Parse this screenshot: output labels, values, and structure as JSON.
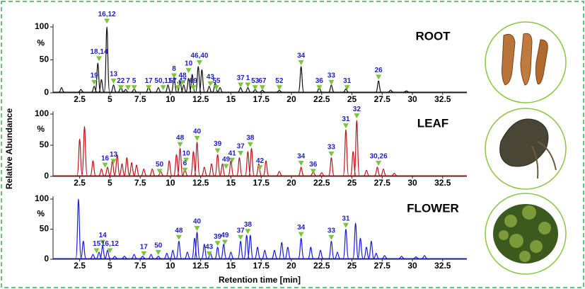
{
  "y_label": "Relative Abundance",
  "x_label": "Retention time [min]",
  "chart_data": [
    {
      "type": "chromatogram",
      "title": "ROOT",
      "color": "#111111",
      "y_unit": "%",
      "xlim": [
        0.3,
        34.5
      ],
      "ylim": [
        0,
        100
      ],
      "xticks": [
        2.5,
        5,
        7.5,
        10,
        12.5,
        15,
        17.5,
        20,
        22.5,
        25,
        27.5,
        30,
        32.5
      ],
      "yticks": [
        0,
        50,
        100
      ],
      "peaks": {
        "x": [
          1.0,
          2.6,
          3.7,
          4.0,
          4.3,
          4.75,
          5.3,
          5.9,
          6.3,
          7.0,
          8.2,
          9.0,
          9.8,
          10.3,
          10.8,
          11.1,
          11.5,
          11.8,
          12.3,
          12.6,
          13.2,
          13.7,
          14.1,
          15.8,
          16.4,
          17.0,
          17.6,
          19.0,
          20.8,
          22.3,
          23.3,
          24.5,
          27.2,
          28.2,
          29.5
        ],
        "values": [
          8,
          5,
          10,
          45,
          20,
          100,
          12,
          10,
          5,
          6,
          10,
          8,
          12,
          25,
          18,
          12,
          22,
          28,
          40,
          35,
          10,
          15,
          8,
          8,
          8,
          5,
          4,
          4,
          40,
          8,
          12,
          6,
          18,
          4,
          3
        ]
      },
      "annotations": [
        {
          "text": "19",
          "x": 3.7,
          "y": 12
        },
        {
          "text": "18,14",
          "x": 4.1,
          "y": 48
        },
        {
          "text": "16,12",
          "x": 4.75,
          "y": 105
        },
        {
          "text": "13",
          "x": 5.3,
          "y": 14
        },
        {
          "text": "22",
          "x": 5.9,
          "y": 4
        },
        {
          "text": "7",
          "x": 6.5,
          "y": 4
        },
        {
          "text": "5",
          "x": 7.0,
          "y": 4
        },
        {
          "text": "17",
          "x": 8.2,
          "y": 4
        },
        {
          "text": "50,11",
          "x": 9.4,
          "y": 4
        },
        {
          "text": "8",
          "x": 10.3,
          "y": 22
        },
        {
          "text": "57,47",
          "x": 10.6,
          "y": 4
        },
        {
          "text": "48",
          "x": 11.0,
          "y": 12
        },
        {
          "text": "10",
          "x": 11.5,
          "y": 30
        },
        {
          "text": "69",
          "x": 11.9,
          "y": 4
        },
        {
          "text": "46,40",
          "x": 12.4,
          "y": 42
        },
        {
          "text": "43",
          "x": 13.3,
          "y": 10
        },
        {
          "text": "55",
          "x": 13.8,
          "y": 4
        },
        {
          "text": "37",
          "x": 15.8,
          "y": 8
        },
        {
          "text": "1",
          "x": 16.4,
          "y": 8
        },
        {
          "text": "53",
          "x": 17.0,
          "y": 4
        },
        {
          "text": "67",
          "x": 17.6,
          "y": 4
        },
        {
          "text": "52",
          "x": 19.0,
          "y": 4
        },
        {
          "text": "34",
          "x": 20.8,
          "y": 42
        },
        {
          "text": "36",
          "x": 22.3,
          "y": 4
        },
        {
          "text": "33",
          "x": 23.3,
          "y": 12
        },
        {
          "text": "31",
          "x": 24.6,
          "y": 4
        },
        {
          "text": "26",
          "x": 27.2,
          "y": 20
        }
      ]
    },
    {
      "type": "chromatogram",
      "title": "LEAF",
      "color": "#c0141c",
      "y_unit": "%",
      "xlim": [
        0.3,
        34.5
      ],
      "ylim": [
        0,
        100
      ],
      "xticks": [
        2.5,
        5,
        7.5,
        10,
        12.5,
        15,
        17.5,
        20,
        22.5,
        25,
        27.5,
        30,
        32.5
      ],
      "yticks": [
        0,
        50,
        100
      ],
      "peaks": {
        "x": [
          2.5,
          2.9,
          3.6,
          4.3,
          4.8,
          5.2,
          5.6,
          6.0,
          6.4,
          6.8,
          7.2,
          7.8,
          8.5,
          9.2,
          9.9,
          10.5,
          10.8,
          11.2,
          11.9,
          12.2,
          12.8,
          13.4,
          13.9,
          14.3,
          15.0,
          15.7,
          16.4,
          16.7,
          17.3,
          17.9,
          19.0,
          20.8,
          21.8,
          22.5,
          23.3,
          24.5,
          25.1,
          25.4,
          26.2,
          27.1,
          27.6,
          28.5
        ],
        "values": [
          60,
          80,
          25,
          12,
          15,
          25,
          35,
          20,
          30,
          22,
          18,
          12,
          12,
          8,
          25,
          35,
          45,
          12,
          40,
          55,
          15,
          20,
          35,
          20,
          25,
          30,
          40,
          45,
          20,
          25,
          8,
          15,
          8,
          6,
          30,
          75,
          40,
          90,
          10,
          15,
          12,
          5
        ]
      },
      "annotations": [
        {
          "text": "16",
          "x": 4.6,
          "y": 14
        },
        {
          "text": "13",
          "x": 5.3,
          "y": 20
        },
        {
          "text": "50",
          "x": 9.1,
          "y": 4
        },
        {
          "text": "48",
          "x": 10.8,
          "y": 47
        },
        {
          "text": "10",
          "x": 11.3,
          "y": 22
        },
        {
          "text": "6",
          "x": 11.2,
          "y": 6
        },
        {
          "text": "40",
          "x": 12.2,
          "y": 57
        },
        {
          "text": "39",
          "x": 13.9,
          "y": 37
        },
        {
          "text": "49",
          "x": 14.6,
          "y": 12
        },
        {
          "text": "41",
          "x": 15.1,
          "y": 22
        },
        {
          "text": "37",
          "x": 15.8,
          "y": 33
        },
        {
          "text": "38",
          "x": 16.6,
          "y": 47
        },
        {
          "text": "42",
          "x": 17.4,
          "y": 10
        },
        {
          "text": "34",
          "x": 20.8,
          "y": 17
        },
        {
          "text": "36",
          "x": 21.8,
          "y": 4
        },
        {
          "text": "33",
          "x": 23.3,
          "y": 32
        },
        {
          "text": "31",
          "x": 24.5,
          "y": 77
        },
        {
          "text": "32",
          "x": 25.4,
          "y": 93
        },
        {
          "text": "30,26",
          "x": 27.2,
          "y": 17
        }
      ]
    },
    {
      "type": "chromatogram",
      "title": "FLOWER",
      "color": "#1a1ae6",
      "y_unit": "%",
      "xlim": [
        0.3,
        34.5
      ],
      "ylim": [
        0,
        100
      ],
      "xticks": [
        2.5,
        5,
        7.5,
        10,
        12.5,
        15,
        17.5,
        20,
        22.5,
        25,
        27.5,
        30,
        32.5
      ],
      "yticks": [
        0,
        50,
        100
      ],
      "peaks": {
        "x": [
          2.4,
          2.8,
          3.6,
          4.1,
          4.4,
          4.8,
          5.4,
          6.2,
          7.0,
          7.7,
          8.4,
          9.0,
          9.7,
          10.2,
          10.7,
          11.4,
          12.0,
          12.2,
          12.8,
          13.3,
          13.9,
          14.4,
          15.0,
          15.8,
          16.3,
          16.6,
          17.2,
          17.8,
          18.6,
          19.2,
          19.7,
          20.8,
          21.6,
          22.4,
          23.3,
          23.8,
          24.5,
          25.3,
          25.7,
          26.2,
          26.6,
          27.0,
          27.7,
          29.1,
          30.3,
          31.0
        ],
        "values": [
          100,
          30,
          8,
          12,
          22,
          15,
          5,
          5,
          8,
          5,
          8,
          5,
          10,
          15,
          30,
          12,
          35,
          45,
          25,
          10,
          20,
          25,
          12,
          30,
          40,
          40,
          20,
          15,
          15,
          28,
          20,
          35,
          20,
          15,
          30,
          12,
          50,
          60,
          35,
          20,
          30,
          10,
          6,
          5,
          4,
          6
        ]
      },
      "annotations": [
        {
          "text": "15",
          "x": 3.9,
          "y": 10
        },
        {
          "text": "14",
          "x": 4.4,
          "y": 24
        },
        {
          "text": "16,12",
          "x": 5.0,
          "y": 10
        },
        {
          "text": "17",
          "x": 7.8,
          "y": 5
        },
        {
          "text": "50",
          "x": 9.0,
          "y": 7
        },
        {
          "text": "48",
          "x": 10.7,
          "y": 32
        },
        {
          "text": "40",
          "x": 12.2,
          "y": 47
        },
        {
          "text": "43",
          "x": 13.2,
          "y": 5
        },
        {
          "text": "39",
          "x": 13.9,
          "y": 22
        },
        {
          "text": "49",
          "x": 14.5,
          "y": 24
        },
        {
          "text": "37",
          "x": 15.8,
          "y": 32
        },
        {
          "text": "38",
          "x": 16.4,
          "y": 42
        },
        {
          "text": "34",
          "x": 20.8,
          "y": 37
        },
        {
          "text": "33",
          "x": 23.3,
          "y": 32
        },
        {
          "text": "31",
          "x": 24.5,
          "y": 52
        }
      ]
    }
  ]
}
